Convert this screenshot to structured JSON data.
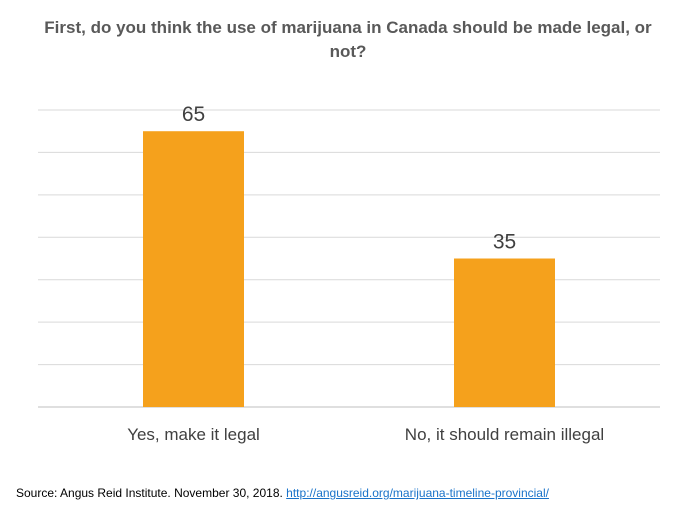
{
  "chart_data": {
    "type": "bar",
    "title": "First, do you think the use of marijuana in Canada should be made legal, or not?",
    "categories": [
      "Yes, make it legal",
      "No, it should remain illegal"
    ],
    "values": [
      65,
      35
    ],
    "ylim": [
      0,
      70
    ],
    "grid": true,
    "bar_color": "#f5a11c",
    "grid_color": "#d9d9d9"
  },
  "source": {
    "text": "Source:  Angus Reid Institute. November 30, 2018.",
    "link": "http://angusreid.org/marijuana-timeline-provincial/"
  }
}
